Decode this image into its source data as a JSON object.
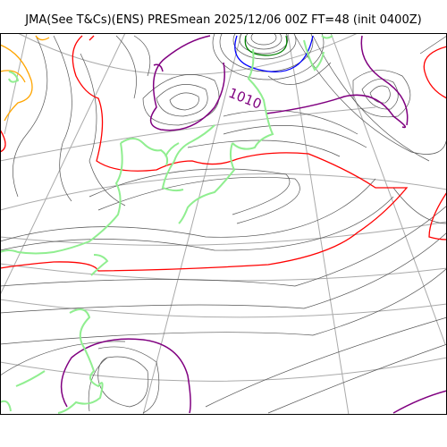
{
  "title": "JMA(See T&Cs)(ENS) PRESmean 2025/12/06 00Z FT=48 (init 0400Z)",
  "isobar_labels": [
    "1010"
  ],
  "colors": {
    "coast": "#90ee90",
    "isobar": "#555555",
    "isobar_1000": "#0000ff",
    "isobar_1004": "#008000",
    "isobar_1008": "#800080",
    "isobar_1012": "#ff0000",
    "isobar_1016": "#ffa500",
    "graticule": "#aaaaaa"
  }
}
